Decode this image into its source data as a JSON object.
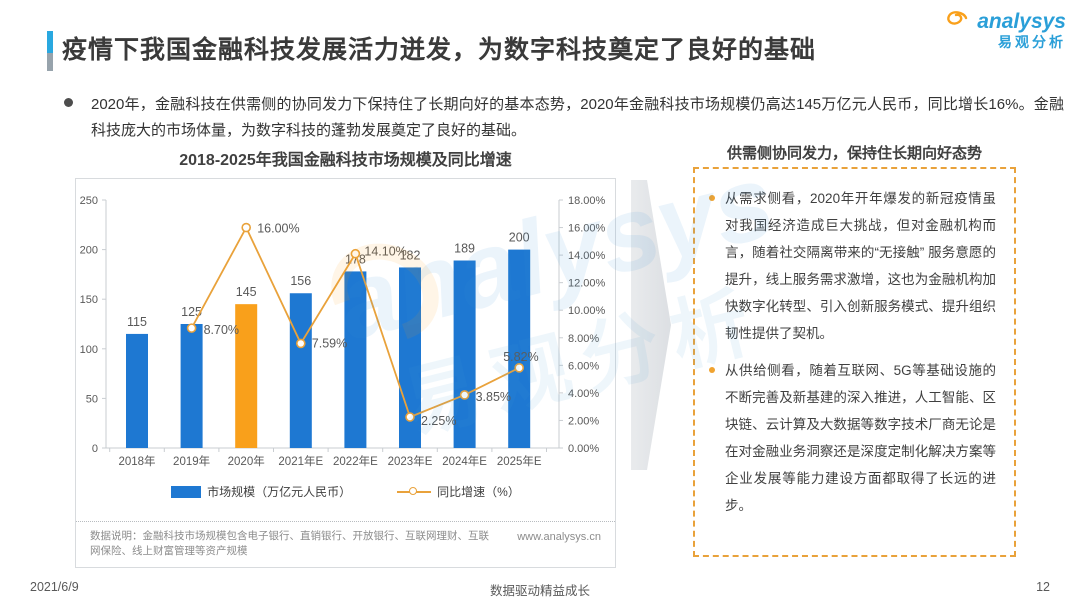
{
  "header": {
    "title": "疫情下我国金融科技发展活力迸发，为数字科技奠定了良好的基础",
    "logo": {
      "brand": "analysys",
      "brand_cn": "易观分析"
    }
  },
  "summary": {
    "text": "2020年，金融科技在供需侧的协同发力下保持住了长期向好的基本态势，2020年金融科技市场规模仍高达145万亿元人民币，同比增长16%。金融科技庞大的市场体量，为数字科技的蓬勃发展奠定了良好的基础。"
  },
  "chart_data": {
    "type": "bar",
    "subtype": "combo-bar-line",
    "title": "2018-2025年我国金融科技市场规模及同比增速",
    "categories": [
      "2018年",
      "2019年",
      "2020年",
      "2021年E",
      "2022年E",
      "2023年E",
      "2024年E",
      "2025年E"
    ],
    "series": [
      {
        "name": "市场规模（万亿元人民币）",
        "type": "bar",
        "values": [
          115,
          125,
          145,
          156,
          178,
          182,
          189,
          200
        ],
        "color": "#1E78D2",
        "highlight_category": "2020年",
        "highlight_color": "#F9A01B"
      },
      {
        "name": "同比增速（%）",
        "type": "line",
        "axis": "right",
        "values": [
          null,
          8.7,
          16.0,
          7.59,
          14.1,
          2.25,
          3.85,
          5.82
        ],
        "labels": [
          null,
          "8.70%",
          "16.00%",
          "7.59%",
          "14.10%",
          "2.25%",
          "3.85%",
          "5.82%"
        ],
        "color": "#E9A23B"
      }
    ],
    "left_axis": {
      "min": 0,
      "max": 250,
      "step": 50,
      "ticks": [
        "0",
        "50",
        "100",
        "150",
        "200",
        "250"
      ]
    },
    "right_axis": {
      "min": 0,
      "max": 18,
      "step": 2,
      "ticks": [
        "0.00%",
        "2.00%",
        "4.00%",
        "6.00%",
        "8.00%",
        "10.00%",
        "12.00%",
        "14.00%",
        "16.00%",
        "18.00%"
      ]
    },
    "grid": false,
    "legend_position": "bottom"
  },
  "chart_note": {
    "label": "数据说明：金融科技市场规模包含电子银行、直销银行、开放银行、互联网理财、互联网保险、线上财富管理等资产规模",
    "source": "www.analysys.cn"
  },
  "right_panel": {
    "title": "供需侧协同发力，保持住长期向好态势",
    "bullets": [
      "从需求侧看，2020年开年爆发的新冠疫情虽对我国经济造成巨大挑战，但对金融机构而言，随着社交隔离带来的“无接触” 服务意愿的提升，线上服务需求激增，这也为金融机构加快数字化转型、引入创新服务模式、提升组织韧性提供了契机。",
      "从供给侧看，随着互联网、5G等基础设施的不断完善及新基建的深入推进，人工智能、区块链、云计算及大数据等数字技术厂商无论是在对金融业务洞察还是深度定制化解决方案等企业发展等能力建设方面都取得了长远的进步。"
    ]
  },
  "footer": {
    "date": "2021/6/9",
    "slogan": "数据驱动精益成长",
    "page": "12"
  },
  "watermark": {
    "brand": "analysys",
    "brand_cn": "易观分析"
  },
  "colors": {
    "bar_blue": "#1E78D2",
    "bar_highlight": "#F9A01B",
    "line_orange": "#E9A23B",
    "accent_blue": "#29A8E0",
    "panel_border": "#E9A23B"
  }
}
